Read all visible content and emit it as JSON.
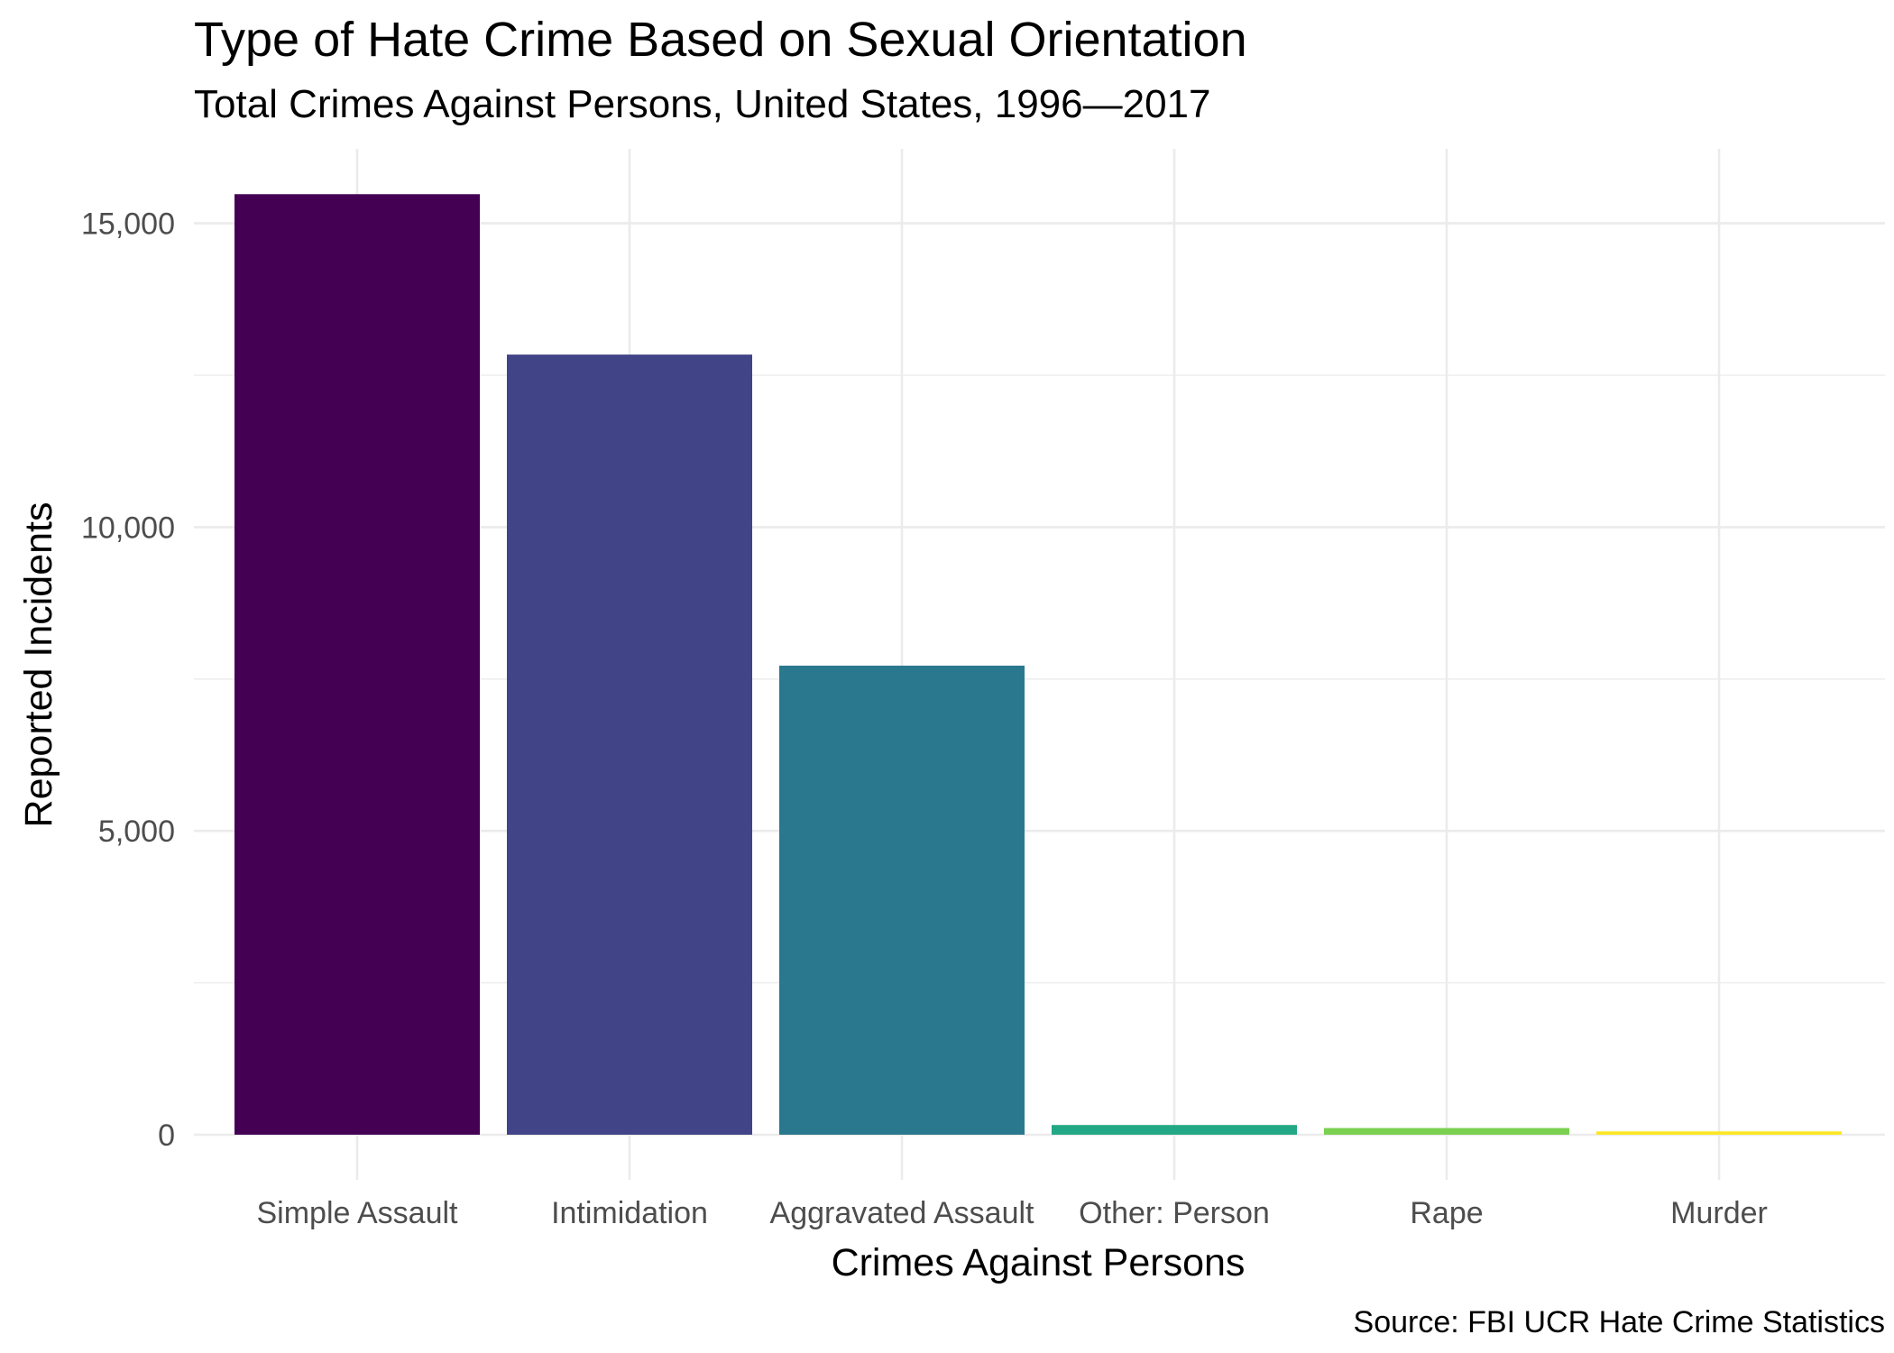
{
  "chart_data": {
    "type": "bar",
    "title": "Type of Hate Crime Based on Sexual Orientation",
    "subtitle": "Total Crimes Against Persons, United States, 1996—2017",
    "xlabel": "Crimes Against Persons",
    "ylabel": "Reported Incidents",
    "caption": "Source: FBI UCR Hate Crime Statistics",
    "categories": [
      "Simple Assault",
      "Intimidation",
      "Aggravated Assault",
      "Other: Person",
      "Rape",
      "Murder"
    ],
    "values": [
      15480,
      12840,
      7720,
      160,
      110,
      55
    ],
    "colors": [
      "#440154",
      "#414487",
      "#2a788e",
      "#22a884",
      "#7ad151",
      "#fde725"
    ],
    "ylim": [
      0,
      16000
    ],
    "y_ticks": [
      0,
      5000,
      10000,
      15000
    ],
    "y_tick_labels": [
      "0",
      "5,000",
      "10,000",
      "15,000"
    ],
    "grid": true,
    "legend": "none"
  }
}
